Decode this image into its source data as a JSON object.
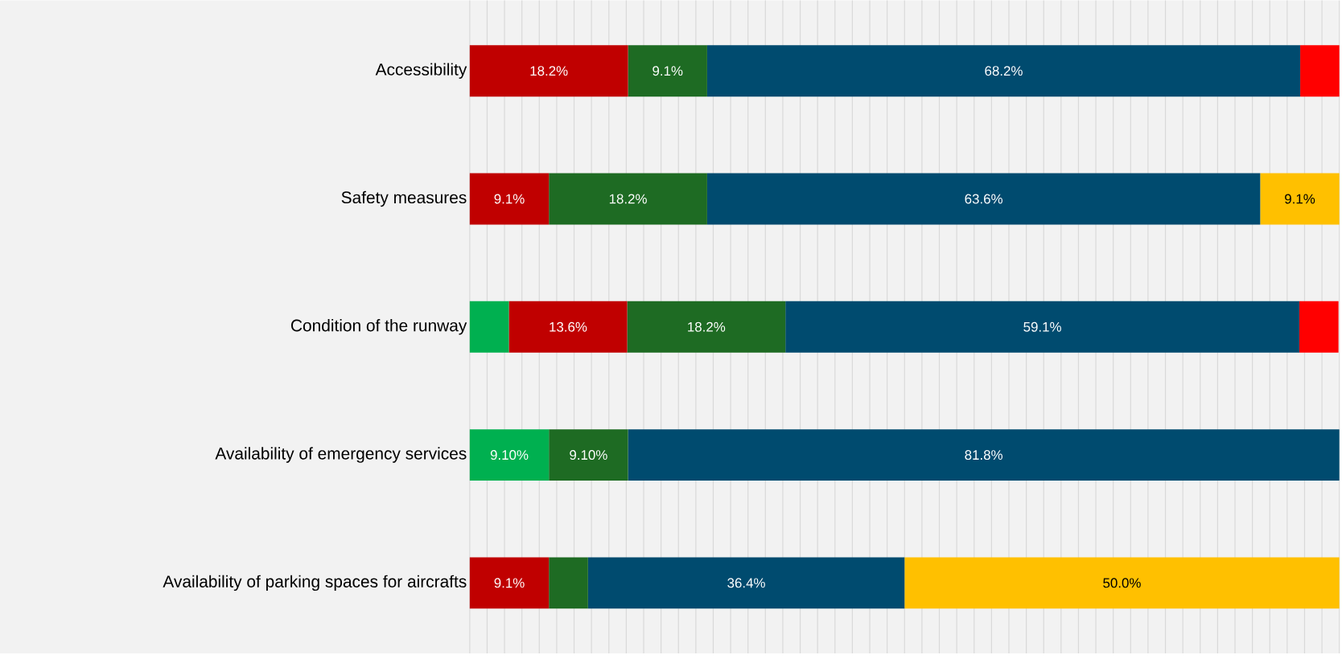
{
  "chart_data": {
    "type": "bar",
    "orientation": "horizontal",
    "stacked": true,
    "categories": [
      "Accessibility",
      "Safety measures",
      "Condition of the runway",
      "Availability of emergency services",
      "Availability of parking spaces for aircrafts"
    ],
    "series": [
      {
        "color": "#00b050",
        "values": [
          null,
          null,
          4.5,
          9.1,
          null
        ],
        "value_labels": [
          null,
          null,
          null,
          "9.10%",
          null
        ]
      },
      {
        "color": "#c00000",
        "values": [
          18.2,
          9.1,
          13.6,
          null,
          9.1
        ],
        "value_labels": [
          "18.2%",
          "9.1%",
          "13.6%",
          null,
          "9.1%"
        ]
      },
      {
        "color": "#1e6b23",
        "values": [
          9.1,
          18.2,
          18.2,
          9.1,
          4.5
        ],
        "value_labels": [
          "9.1%",
          "18.2%",
          "18.2%",
          "9.10%",
          null
        ]
      },
      {
        "color": "#004b6f",
        "values": [
          68.2,
          63.6,
          59.1,
          81.8,
          36.4
        ],
        "value_labels": [
          "68.2%",
          "63.6%",
          "59.1%",
          "81.8%",
          "36.4%"
        ]
      },
      {
        "color": "#ffc000",
        "values": [
          null,
          9.1,
          null,
          null,
          50.0
        ],
        "value_labels": [
          null,
          "9.1%",
          null,
          null,
          "50.0%"
        ]
      },
      {
        "color": "#ff0000",
        "values": [
          4.5,
          null,
          4.5,
          null,
          null
        ],
        "value_labels": [
          null,
          null,
          null,
          null,
          null
        ]
      }
    ],
    "grid": "x",
    "tick_labels": "y"
  }
}
